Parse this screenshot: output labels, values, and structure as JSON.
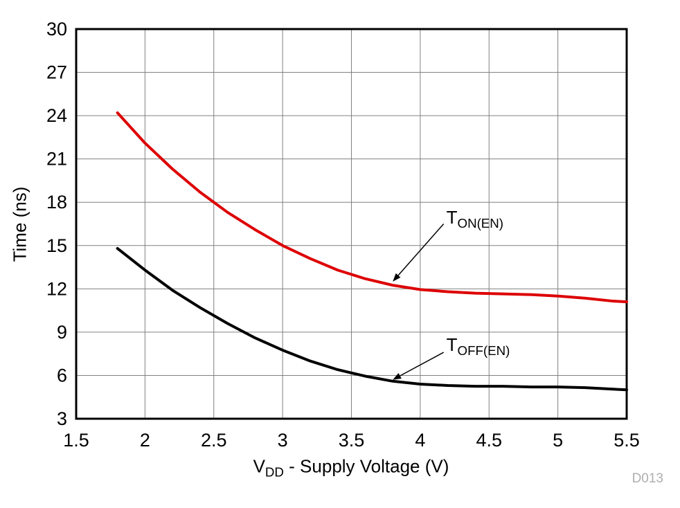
{
  "chart_data": {
    "type": "line",
    "title": "",
    "xlabel": {
      "main": "V",
      "sub": "DD",
      "rest": " - Supply Voltage (V)"
    },
    "ylabel": "Time (ns)",
    "xlim": [
      1.5,
      5.5
    ],
    "ylim": [
      3,
      30
    ],
    "xticks": [
      1.5,
      2,
      2.5,
      3,
      3.5,
      4,
      4.5,
      5,
      5.5
    ],
    "yticks": [
      3,
      6,
      9,
      12,
      15,
      18,
      21,
      24,
      27,
      30
    ],
    "grid": true,
    "legend_position": "annotated-on-plot",
    "watermark": "D013",
    "colors": {
      "grid": "#808080",
      "frame": "#000000"
    },
    "series": [
      {
        "name": "TON(EN)",
        "color": "#dd0000",
        "x": [
          1.8,
          2.0,
          2.2,
          2.4,
          2.6,
          2.8,
          3.0,
          3.2,
          3.4,
          3.6,
          3.8,
          4.0,
          4.2,
          4.4,
          4.6,
          4.8,
          5.0,
          5.2,
          5.4,
          5.5
        ],
        "y": [
          24.2,
          22.1,
          20.3,
          18.7,
          17.3,
          16.1,
          15.0,
          14.1,
          13.3,
          12.7,
          12.25,
          11.95,
          11.8,
          11.7,
          11.65,
          11.6,
          11.5,
          11.35,
          11.15,
          11.1
        ]
      },
      {
        "name": "TOFF(EN)",
        "color": "#000000",
        "x": [
          1.8,
          2.0,
          2.2,
          2.4,
          2.6,
          2.8,
          3.0,
          3.2,
          3.4,
          3.6,
          3.8,
          4.0,
          4.2,
          4.4,
          4.6,
          4.8,
          5.0,
          5.2,
          5.4,
          5.5
        ],
        "y": [
          14.8,
          13.3,
          11.9,
          10.7,
          9.6,
          8.6,
          7.75,
          7.0,
          6.4,
          5.95,
          5.6,
          5.4,
          5.3,
          5.25,
          5.25,
          5.2,
          5.2,
          5.15,
          5.05,
          5.0
        ]
      }
    ],
    "annotations": [
      {
        "label_main": "T",
        "label_sub": "ON(EN)",
        "label_pos": [
          4.19,
          17.65
        ],
        "arrow_from": [
          4.17,
          16.5
        ],
        "arrow_to": [
          3.8,
          12.5
        ]
      },
      {
        "label_main": "T",
        "label_sub": "OFF(EN)",
        "label_pos": [
          4.19,
          8.8
        ],
        "arrow_from": [
          4.17,
          7.6
        ],
        "arrow_to": [
          3.8,
          5.7
        ]
      }
    ]
  }
}
